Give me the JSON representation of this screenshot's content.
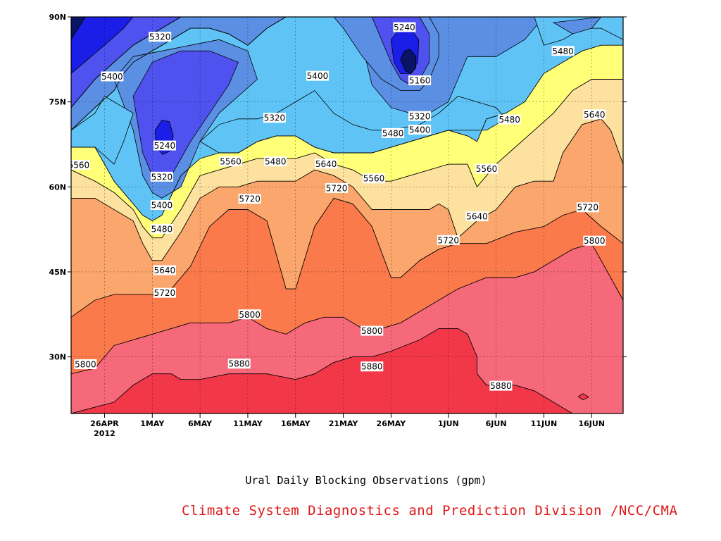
{
  "chart_data": {
    "type": "contour",
    "title": "",
    "xlabel": "Ural Daily Blocking Observations (gpm)",
    "ylabel": "",
    "x_ticks": [
      {
        "label": "26APR",
        "sublabel": "2012",
        "day": 0
      },
      {
        "label": "1MAY",
        "day": 5
      },
      {
        "label": "6MAY",
        "day": 10
      },
      {
        "label": "11MAY",
        "day": 15
      },
      {
        "label": "16MAY",
        "day": 20
      },
      {
        "label": "21MAY",
        "day": 25
      },
      {
        "label": "26MAY",
        "day": 30
      },
      {
        "label": "1JUN",
        "day": 36
      },
      {
        "label": "6JUN",
        "day": 41
      },
      {
        "label": "11JUN",
        "day": 46
      },
      {
        "label": "16JUN",
        "day": 51
      }
    ],
    "xlim": [
      -3.5,
      54.3
    ],
    "y_ticks": [
      {
        "label": "30N",
        "value": 30
      },
      {
        "label": "45N",
        "value": 45
      },
      {
        "label": "60N",
        "value": 60
      },
      {
        "label": "75N",
        "value": 75
      },
      {
        "label": "90N",
        "value": 90
      }
    ],
    "ylim": [
      20,
      90
    ],
    "grid": true,
    "levels": [
      5240,
      5320,
      5400,
      5480,
      5560,
      5640,
      5720,
      5800,
      5880
    ],
    "level_colors": [
      "#0a1464",
      "#1a1ee6",
      "#4f52ee",
      "#5b8fe3",
      "#5fc4f5",
      "#ffff78",
      "#fde19f",
      "#fba66c",
      "#fb7a4c",
      "#f5697b",
      "#f23848"
    ],
    "contours": [
      {
        "level": 5880,
        "points": [
          [
            -3.5,
            20
          ],
          [
            1,
            22
          ],
          [
            3,
            25
          ],
          [
            5,
            27
          ],
          [
            7,
            27
          ],
          [
            8,
            26
          ],
          [
            10,
            26
          ],
          [
            13,
            27
          ],
          [
            15,
            27
          ],
          [
            17,
            27
          ],
          [
            20,
            26
          ],
          [
            22,
            27
          ],
          [
            24,
            29
          ],
          [
            26,
            30
          ],
          [
            28,
            30
          ],
          [
            30,
            31
          ],
          [
            33,
            33
          ],
          [
            35,
            35
          ],
          [
            37,
            35
          ],
          [
            38,
            34
          ],
          [
            39,
            30
          ],
          [
            39,
            27
          ],
          [
            40,
            25
          ],
          [
            43,
            25
          ],
          [
            45,
            24
          ],
          [
            47,
            22
          ],
          [
            48,
            21
          ],
          [
            49,
            20
          ]
        ]
      },
      {
        "level": 5800,
        "points": [
          [
            -3.5,
            27
          ],
          [
            -1,
            28
          ],
          [
            1,
            32
          ],
          [
            3,
            33
          ],
          [
            5,
            34
          ],
          [
            7,
            35
          ],
          [
            9,
            36
          ],
          [
            11,
            36
          ],
          [
            13,
            36
          ],
          [
            15,
            37
          ],
          [
            17,
            35
          ],
          [
            19,
            34
          ],
          [
            21,
            36
          ],
          [
            23,
            37
          ],
          [
            25,
            37
          ],
          [
            27,
            35
          ],
          [
            29,
            35
          ],
          [
            31,
            36
          ],
          [
            33,
            38
          ],
          [
            35,
            40
          ],
          [
            37,
            42
          ],
          [
            40,
            44
          ],
          [
            43,
            44
          ],
          [
            45,
            45
          ],
          [
            47,
            47
          ],
          [
            49,
            49
          ],
          [
            51,
            50
          ],
          [
            52,
            47
          ],
          [
            54.3,
            40
          ]
        ]
      },
      {
        "level": 5720,
        "points": [
          [
            -3.5,
            37
          ],
          [
            -1,
            40
          ],
          [
            1,
            41
          ],
          [
            3,
            41
          ],
          [
            5,
            41
          ],
          [
            7,
            42
          ],
          [
            9,
            46
          ],
          [
            11,
            53
          ],
          [
            13,
            56
          ],
          [
            15,
            56
          ],
          [
            17,
            54
          ],
          [
            19,
            42
          ],
          [
            20,
            42
          ],
          [
            22,
            53
          ],
          [
            24,
            58
          ],
          [
            26,
            57
          ],
          [
            28,
            53
          ],
          [
            30,
            44
          ],
          [
            31,
            44
          ],
          [
            33,
            47
          ],
          [
            35,
            49
          ],
          [
            37,
            50
          ],
          [
            40,
            50
          ],
          [
            43,
            52
          ],
          [
            46,
            53
          ],
          [
            48,
            55
          ],
          [
            50,
            56
          ],
          [
            52,
            53
          ],
          [
            54.3,
            50
          ]
        ]
      },
      {
        "level": 5640,
        "points": [
          [
            -3.5,
            58
          ],
          [
            -1,
            58
          ],
          [
            1,
            56
          ],
          [
            3,
            54
          ],
          [
            4,
            50
          ],
          [
            5,
            47
          ],
          [
            6,
            47
          ],
          [
            8,
            52
          ],
          [
            10,
            58
          ],
          [
            12,
            60
          ],
          [
            14,
            60
          ],
          [
            16,
            61
          ],
          [
            18,
            61
          ],
          [
            20,
            61
          ],
          [
            22,
            63
          ],
          [
            24,
            62
          ],
          [
            26,
            60
          ],
          [
            28,
            56
          ],
          [
            30,
            56
          ],
          [
            32,
            56
          ],
          [
            34,
            56
          ],
          [
            35,
            57
          ],
          [
            36,
            56
          ],
          [
            37,
            51
          ],
          [
            39,
            54
          ],
          [
            41,
            56
          ],
          [
            43,
            60
          ],
          [
            45,
            61
          ],
          [
            47,
            61
          ],
          [
            48,
            66
          ],
          [
            50,
            71
          ],
          [
            52,
            72
          ],
          [
            53,
            70
          ],
          [
            54.3,
            64
          ]
        ]
      },
      {
        "level": 5560,
        "points": [
          [
            -3.5,
            63
          ],
          [
            -1,
            61
          ],
          [
            1,
            59
          ],
          [
            3,
            56
          ],
          [
            4,
            53
          ],
          [
            5,
            51
          ],
          [
            6,
            51
          ],
          [
            8,
            56
          ],
          [
            10,
            62
          ],
          [
            12,
            63
          ],
          [
            14,
            64
          ],
          [
            16,
            65
          ],
          [
            18,
            65
          ],
          [
            20,
            65
          ],
          [
            22,
            66
          ],
          [
            24,
            64
          ],
          [
            26,
            63
          ],
          [
            28,
            61
          ],
          [
            30,
            61
          ],
          [
            32,
            62
          ],
          [
            34,
            63
          ],
          [
            36,
            64
          ],
          [
            38,
            64
          ],
          [
            39,
            60
          ],
          [
            41,
            64
          ],
          [
            43,
            67
          ],
          [
            45,
            70
          ],
          [
            47,
            73
          ],
          [
            49,
            77
          ],
          [
            51,
            79
          ],
          [
            54.3,
            79
          ]
        ]
      },
      {
        "level": 5480,
        "points": [
          [
            -3.5,
            67
          ],
          [
            -1,
            67
          ],
          [
            1,
            61
          ],
          [
            3,
            57
          ],
          [
            4,
            55
          ],
          [
            5,
            54
          ],
          [
            6,
            55
          ],
          [
            8,
            62
          ],
          [
            10,
            65
          ],
          [
            12,
            66
          ],
          [
            14,
            66
          ],
          [
            16,
            68
          ],
          [
            18,
            69
          ],
          [
            20,
            69
          ],
          [
            22,
            67
          ],
          [
            24,
            66
          ],
          [
            26,
            66
          ],
          [
            28,
            66
          ],
          [
            30,
            67
          ],
          [
            32,
            68
          ],
          [
            34,
            69
          ],
          [
            36,
            70
          ],
          [
            38,
            69
          ],
          [
            39,
            68
          ],
          [
            40,
            72
          ],
          [
            42,
            73
          ],
          [
            44,
            75
          ],
          [
            46,
            80
          ],
          [
            48,
            82
          ],
          [
            50,
            84
          ],
          [
            52,
            85
          ],
          [
            54.3,
            85
          ]
        ]
      },
      {
        "level": 5400,
        "points": [
          [
            -3.5,
            70
          ],
          [
            -1,
            74
          ],
          [
            1,
            77
          ],
          [
            2,
            80
          ],
          [
            3,
            82
          ],
          [
            5,
            84
          ],
          [
            7,
            86
          ],
          [
            9,
            88
          ],
          [
            11,
            88
          ],
          [
            13,
            87
          ],
          [
            15,
            85
          ],
          [
            17,
            88
          ],
          [
            19,
            90
          ]
        ]
      },
      {
        "level": 5320,
        "points": [
          [
            -3.5,
            74
          ],
          [
            -1,
            79
          ],
          [
            1,
            82
          ],
          [
            3,
            85
          ],
          [
            5,
            87
          ],
          [
            7,
            89
          ],
          [
            8,
            90
          ]
        ]
      }
    ],
    "contour_labels": [
      {
        "text": "5320",
        "x": 5.8,
        "y": 86.5
      },
      {
        "text": "5400",
        "x": 0.8,
        "y": 79.5
      },
      {
        "text": "5240",
        "x": 6.3,
        "y": 67.3
      },
      {
        "text": "5320",
        "x": 6.0,
        "y": 61.8
      },
      {
        "text": "5400",
        "x": 6.0,
        "y": 56.8
      },
      {
        "text": "5480",
        "x": 6.0,
        "y": 52.6
      },
      {
        "text": "5560",
        "x": -2.7,
        "y": 63.9
      },
      {
        "text": "5640",
        "x": 6.3,
        "y": 45.3
      },
      {
        "text": "5720",
        "x": 6.3,
        "y": 41.3
      },
      {
        "text": "5800",
        "x": -2.0,
        "y": 28.7
      },
      {
        "text": "5880",
        "x": 14.1,
        "y": 28.8
      },
      {
        "text": "5800",
        "x": 15.2,
        "y": 37.5
      },
      {
        "text": "5720",
        "x": 15.2,
        "y": 57.9
      },
      {
        "text": "5560",
        "x": 13.2,
        "y": 64.5
      },
      {
        "text": "5480",
        "x": 17.9,
        "y": 64.5
      },
      {
        "text": "5320",
        "x": 17.8,
        "y": 72.2
      },
      {
        "text": "5400",
        "x": 22.3,
        "y": 79.6
      },
      {
        "text": "5640",
        "x": 23.2,
        "y": 64.1
      },
      {
        "text": "5720",
        "x": 24.3,
        "y": 59.8
      },
      {
        "text": "5560",
        "x": 28.2,
        "y": 61.5
      },
      {
        "text": "5800",
        "x": 28.0,
        "y": 34.6
      },
      {
        "text": "5880",
        "x": 28.0,
        "y": 28.3
      },
      {
        "text": "5240",
        "x": 31.4,
        "y": 88.2
      },
      {
        "text": "5160",
        "x": 33.0,
        "y": 78.8
      },
      {
        "text": "5320",
        "x": 33.0,
        "y": 72.5
      },
      {
        "text": "5400",
        "x": 33.0,
        "y": 70.1
      },
      {
        "text": "5480",
        "x": 30.2,
        "y": 69.5
      },
      {
        "text": "5480",
        "x": 42.4,
        "y": 71.9
      },
      {
        "text": "5480",
        "x": 48.0,
        "y": 84.0
      },
      {
        "text": "5560",
        "x": 40.0,
        "y": 63.2
      },
      {
        "text": "5640",
        "x": 39.0,
        "y": 54.8
      },
      {
        "text": "5720",
        "x": 36.0,
        "y": 50.6
      },
      {
        "text": "5640",
        "x": 51.3,
        "y": 72.8
      },
      {
        "text": "5720",
        "x": 50.6,
        "y": 56.4
      },
      {
        "text": "5800",
        "x": 51.3,
        "y": 50.5
      },
      {
        "text": "5880",
        "x": 41.5,
        "y": 24.9
      }
    ]
  },
  "footer": {
    "credit": "Climate System Diagnostics and Prediction Division /NCC/CMA"
  }
}
